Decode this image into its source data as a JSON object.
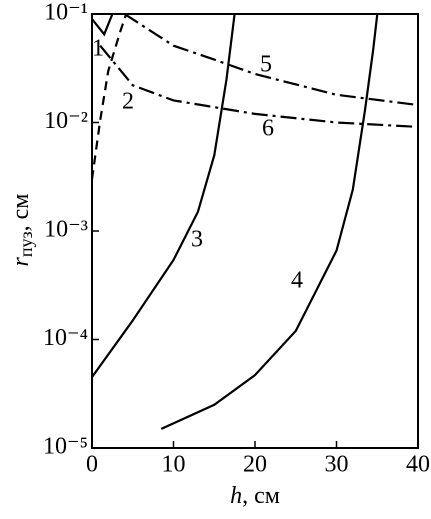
{
  "chart_data": {
    "type": "line",
    "xlabel": {
      "main": "h",
      "unit": ", см"
    },
    "ylabel": {
      "main": "r",
      "sub": "пуз",
      "unit": ", см"
    },
    "xlim": [
      0,
      40
    ],
    "xticks": [
      0,
      10,
      20,
      30,
      40
    ],
    "ylim": [
      1e-05,
      0.1
    ],
    "log_y": true,
    "yticks": [
      {
        "value": 1e-05,
        "label": "10⁻⁵"
      },
      {
        "value": 0.0001,
        "label": "10⁻⁴"
      },
      {
        "value": 0.001,
        "label": "10⁻³"
      },
      {
        "value": 0.01,
        "label": "10⁻²"
      },
      {
        "value": 0.1,
        "label": "10⁻¹"
      }
    ],
    "series": [
      {
        "name": "1",
        "color": "#000000",
        "style": "solid",
        "x": [
          0,
          1.5,
          2.5
        ],
        "values": [
          0.09,
          0.065,
          0.1
        ]
      },
      {
        "name": "2",
        "color": "#000000",
        "style": "dashed",
        "x": [
          0,
          1,
          2,
          3.5,
          4.2
        ],
        "values": [
          0.003,
          0.0105,
          0.03,
          0.07,
          0.1
        ]
      },
      {
        "name": "3",
        "color": "#000000",
        "style": "solid",
        "x": [
          0,
          5,
          10,
          13,
          15,
          16.5,
          17.5
        ],
        "values": [
          4.5e-05,
          0.00015,
          0.00054,
          0.0015,
          0.005,
          0.025,
          0.1
        ]
      },
      {
        "name": "4",
        "color": "#000000",
        "style": "solid",
        "x": [
          8.5,
          15,
          20,
          25,
          30,
          32,
          33.5,
          34.5,
          35
        ],
        "values": [
          1.5e-05,
          2.5e-05,
          4.7e-05,
          0.00012,
          0.00066,
          0.0024,
          0.013,
          0.047,
          0.1
        ]
      },
      {
        "name": "5",
        "color": "#000000",
        "style": "dashdot",
        "x": [
          4,
          10,
          15,
          20,
          30,
          40
        ],
        "values": [
          0.1,
          0.051,
          0.038,
          0.028,
          0.018,
          0.0145
        ]
      },
      {
        "name": "6",
        "color": "#000000",
        "style": "dashdot",
        "x": [
          1,
          5,
          10,
          20,
          30,
          40
        ],
        "values": [
          0.051,
          0.022,
          0.016,
          0.012,
          0.01,
          0.0091
        ]
      }
    ]
  }
}
